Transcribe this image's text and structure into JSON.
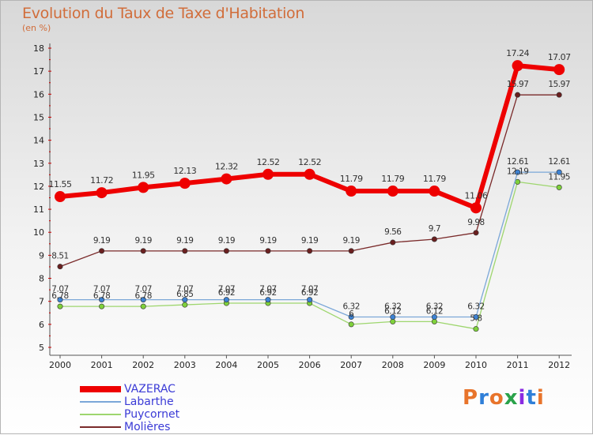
{
  "header": {
    "title": "Evolution du Taux de Taxe d'Habitation",
    "unit": "(en %)"
  },
  "brand": {
    "logo_text": "Proxiti",
    "logo_colors": [
      "#e8742b",
      "#2f7fd8",
      "#e8742b",
      "#2aa24a",
      "#8a2be2",
      "#2f7fd8",
      "#e8742b"
    ]
  },
  "chart_data": {
    "type": "line",
    "title": "Evolution du Taux de Taxe d'Habitation",
    "subtitle": "(en %)",
    "x": [
      "2000",
      "2001",
      "2002",
      "2003",
      "2004",
      "2005",
      "2006",
      "2007",
      "2008",
      "2009",
      "2010",
      "2011",
      "2012"
    ],
    "ylim": [
      5,
      18
    ],
    "yticks": [
      5,
      6,
      7,
      8,
      9,
      10,
      11,
      12,
      13,
      14,
      15,
      16,
      17,
      18
    ],
    "grid": false,
    "legend_position": "bottom-left",
    "series": [
      {
        "name": "VAZERAC",
        "color": "#ee0000",
        "marker": "#ee0000",
        "values": [
          11.55,
          11.72,
          11.95,
          12.13,
          12.32,
          12.52,
          12.52,
          11.79,
          11.79,
          11.79,
          11.06,
          17.24,
          17.07
        ],
        "labels": [
          "11.55",
          "11.72",
          "11.95",
          "12.13",
          "12.32",
          "12.52",
          "12.52",
          "11.79",
          "11.79",
          "11.79",
          "11.06",
          "17.24",
          "17.07"
        ]
      },
      {
        "name": "Labarthe",
        "color": "#7ba7d8",
        "marker": "#3d82d3",
        "values": [
          7.07,
          7.07,
          7.07,
          7.07,
          7.07,
          7.07,
          7.07,
          6.32,
          6.32,
          6.32,
          6.32,
          12.61,
          12.61
        ],
        "labels": [
          "7.07",
          "7.07",
          "7.07",
          "7.07",
          "7.07",
          "7.07",
          "7.07",
          "6.32",
          "6.32",
          "6.32",
          "6.32",
          "12.61",
          "12.61"
        ]
      },
      {
        "name": "Puycornet",
        "color": "#9ed66e",
        "marker": "#7fd13b",
        "values": [
          6.78,
          6.78,
          6.78,
          6.85,
          6.92,
          6.92,
          6.92,
          6.0,
          6.12,
          6.12,
          5.8,
          12.19,
          11.95
        ],
        "labels": [
          "6.78",
          "6.78",
          "6.78",
          "6.85",
          "6.92",
          "6.92",
          "6.92",
          "6",
          "6.12",
          "6.12",
          "5.8",
          "12.19",
          "11.95"
        ]
      },
      {
        "name": "Molières",
        "color": "#7a2a2a",
        "marker": "#6a1f1f",
        "values": [
          8.51,
          9.19,
          9.19,
          9.19,
          9.19,
          9.19,
          9.19,
          9.19,
          9.56,
          9.7,
          9.98,
          15.97,
          15.97
        ],
        "labels": [
          "8.51",
          "9.19",
          "9.19",
          "9.19",
          "9.19",
          "9.19",
          "9.19",
          "9.19",
          "9.56",
          "9.7",
          "9.98",
          "15.97",
          "15.97"
        ]
      }
    ]
  }
}
